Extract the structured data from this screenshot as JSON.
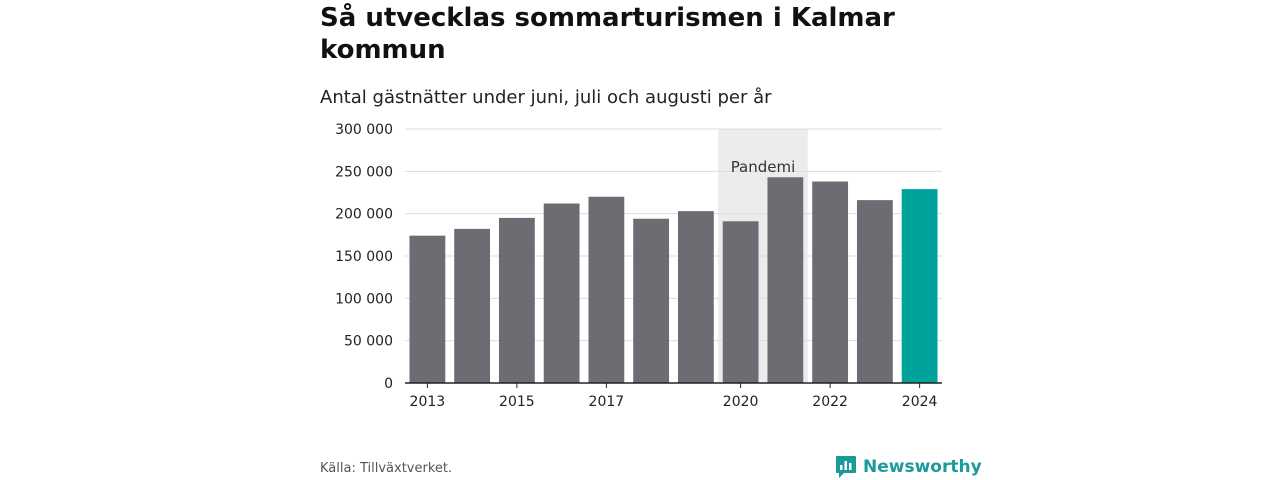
{
  "title": "Så utvecklas sommarturismen i Kalmar kommun",
  "subtitle": "Antal gästnätter under juni, juli och augusti per år",
  "source": "Källa: Tillväxtverket.",
  "brand": {
    "name": "Newsworthy",
    "icon": "newsworthy-chart-icon",
    "color": "#1b9a9a"
  },
  "chart_data": {
    "type": "bar",
    "categories": [
      "2013",
      "2014",
      "2015",
      "2016",
      "2017",
      "2018",
      "2019",
      "2020",
      "2021",
      "2022",
      "2023",
      "2024"
    ],
    "x_tick_labels": [
      "2013",
      "",
      "2015",
      "",
      "2017",
      "",
      "",
      "2020",
      "",
      "2022",
      "",
      "2024"
    ],
    "values": [
      174000,
      182000,
      195000,
      212000,
      220000,
      194000,
      203000,
      191000,
      243000,
      238000,
      216000,
      229000
    ],
    "ylim": [
      0,
      300000
    ],
    "y_ticks": [
      0,
      50000,
      100000,
      150000,
      200000,
      250000,
      300000
    ],
    "y_tick_labels": [
      "0",
      "50 000",
      "100 000",
      "150 000",
      "200 000",
      "250 000",
      "300 000"
    ],
    "grid": true,
    "colors": {
      "default": "#6d6c73",
      "highlight": "#00a39b",
      "shade": "#ececec",
      "grid": "#dddddd",
      "axis": "#222222"
    },
    "highlight_category": "2024",
    "annotation": {
      "label": "Pandemi",
      "from": "2020",
      "to": "2021"
    }
  }
}
